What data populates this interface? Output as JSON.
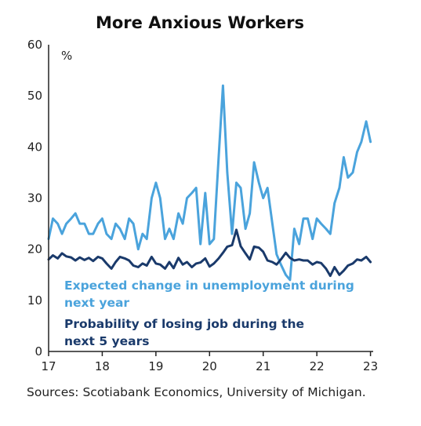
{
  "chart_data": {
    "type": "line",
    "title": "More Anxious Workers",
    "unit_label": "%",
    "ylim": [
      0,
      60
    ],
    "y_ticks": [
      0,
      10,
      20,
      30,
      40,
      50,
      60
    ],
    "xlim": [
      2017,
      2023.05
    ],
    "x_ticks": [
      {
        "value": 2017,
        "label": "17"
      },
      {
        "value": 2018,
        "label": "18"
      },
      {
        "value": 2019,
        "label": "19"
      },
      {
        "value": 2020,
        "label": "20"
      },
      {
        "value": 2021,
        "label": "21"
      },
      {
        "value": 2022,
        "label": "22"
      },
      {
        "value": 2023,
        "label": "23"
      }
    ],
    "grid": false,
    "legend_placement": "inside-bottom-left",
    "series": [
      {
        "name": "Expected change in unemployment during next year",
        "color": "#4aa3dc",
        "values": [
          [
            2017.0,
            22
          ],
          [
            2017.08,
            26
          ],
          [
            2017.17,
            25
          ],
          [
            2017.25,
            23
          ],
          [
            2017.33,
            25
          ],
          [
            2017.42,
            26
          ],
          [
            2017.5,
            27
          ],
          [
            2017.58,
            25
          ],
          [
            2017.67,
            25
          ],
          [
            2017.75,
            23
          ],
          [
            2017.83,
            23
          ],
          [
            2017.92,
            25
          ],
          [
            2018.0,
            26
          ],
          [
            2018.08,
            23
          ],
          [
            2018.17,
            22
          ],
          [
            2018.25,
            25
          ],
          [
            2018.33,
            24
          ],
          [
            2018.42,
            22
          ],
          [
            2018.5,
            26
          ],
          [
            2018.58,
            25
          ],
          [
            2018.67,
            20
          ],
          [
            2018.75,
            23
          ],
          [
            2018.83,
            22
          ],
          [
            2018.92,
            30
          ],
          [
            2019.0,
            33
          ],
          [
            2019.08,
            30
          ],
          [
            2019.17,
            22
          ],
          [
            2019.25,
            24
          ],
          [
            2019.33,
            22
          ],
          [
            2019.42,
            27
          ],
          [
            2019.5,
            25
          ],
          [
            2019.58,
            30
          ],
          [
            2019.67,
            31
          ],
          [
            2019.75,
            32
          ],
          [
            2019.83,
            21
          ],
          [
            2019.92,
            31
          ],
          [
            2020.0,
            21
          ],
          [
            2020.08,
            22
          ],
          [
            2020.17,
            38
          ],
          [
            2020.25,
            52
          ],
          [
            2020.33,
            35
          ],
          [
            2020.42,
            23
          ],
          [
            2020.5,
            33
          ],
          [
            2020.58,
            32
          ],
          [
            2020.67,
            24
          ],
          [
            2020.75,
            27
          ],
          [
            2020.83,
            37
          ],
          [
            2020.92,
            33
          ],
          [
            2021.0,
            30
          ],
          [
            2021.08,
            32
          ],
          [
            2021.17,
            25
          ],
          [
            2021.25,
            19
          ],
          [
            2021.33,
            17
          ],
          [
            2021.42,
            15
          ],
          [
            2021.5,
            14
          ],
          [
            2021.58,
            24
          ],
          [
            2021.67,
            21
          ],
          [
            2021.75,
            26
          ],
          [
            2021.83,
            26
          ],
          [
            2021.92,
            22
          ],
          [
            2022.0,
            26
          ],
          [
            2022.08,
            25
          ],
          [
            2022.17,
            24
          ],
          [
            2022.25,
            23
          ],
          [
            2022.33,
            29
          ],
          [
            2022.42,
            32
          ],
          [
            2022.5,
            38
          ],
          [
            2022.58,
            34
          ],
          [
            2022.67,
            35
          ],
          [
            2022.75,
            39
          ],
          [
            2022.83,
            41
          ],
          [
            2022.92,
            45
          ],
          [
            2023.0,
            41
          ]
        ]
      },
      {
        "name": "Probability of losing job during the next 5 years",
        "color": "#1a3a6b",
        "values": [
          [
            2017.0,
            18
          ],
          [
            2017.08,
            18.8
          ],
          [
            2017.17,
            18.2
          ],
          [
            2017.25,
            19.2
          ],
          [
            2017.33,
            18.6
          ],
          [
            2017.42,
            18.4
          ],
          [
            2017.5,
            17.8
          ],
          [
            2017.58,
            18.4
          ],
          [
            2017.67,
            17.9
          ],
          [
            2017.75,
            18.3
          ],
          [
            2017.83,
            17.7
          ],
          [
            2017.92,
            18.5
          ],
          [
            2018.0,
            18.2
          ],
          [
            2018.08,
            17.2
          ],
          [
            2018.17,
            16.2
          ],
          [
            2018.25,
            17.5
          ],
          [
            2018.33,
            18.5
          ],
          [
            2018.42,
            18.2
          ],
          [
            2018.5,
            17.8
          ],
          [
            2018.58,
            16.8
          ],
          [
            2018.67,
            16.5
          ],
          [
            2018.75,
            17.2
          ],
          [
            2018.83,
            16.8
          ],
          [
            2018.92,
            18.5
          ],
          [
            2019.0,
            17.2
          ],
          [
            2019.08,
            17.0
          ],
          [
            2019.17,
            16.2
          ],
          [
            2019.25,
            17.5
          ],
          [
            2019.33,
            16.3
          ],
          [
            2019.42,
            18.3
          ],
          [
            2019.5,
            17.0
          ],
          [
            2019.58,
            17.5
          ],
          [
            2019.67,
            16.5
          ],
          [
            2019.75,
            17.2
          ],
          [
            2019.83,
            17.4
          ],
          [
            2019.92,
            18.2
          ],
          [
            2020.0,
            16.6
          ],
          [
            2020.08,
            17.2
          ],
          [
            2020.17,
            18.2
          ],
          [
            2020.25,
            19.3
          ],
          [
            2020.33,
            20.5
          ],
          [
            2020.42,
            20.8
          ],
          [
            2020.5,
            23.8
          ],
          [
            2020.58,
            20.6
          ],
          [
            2020.67,
            19.2
          ],
          [
            2020.75,
            18.0
          ],
          [
            2020.83,
            20.5
          ],
          [
            2020.92,
            20.3
          ],
          [
            2021.0,
            19.5
          ],
          [
            2021.08,
            17.8
          ],
          [
            2021.17,
            17.5
          ],
          [
            2021.25,
            17.0
          ],
          [
            2021.33,
            18.0
          ],
          [
            2021.42,
            19.3
          ],
          [
            2021.5,
            18.3
          ],
          [
            2021.58,
            17.8
          ],
          [
            2021.67,
            18.0
          ],
          [
            2021.75,
            17.8
          ],
          [
            2021.83,
            17.8
          ],
          [
            2021.92,
            17.0
          ],
          [
            2022.0,
            17.5
          ],
          [
            2022.08,
            17.3
          ],
          [
            2022.17,
            16.2
          ],
          [
            2022.25,
            14.8
          ],
          [
            2022.33,
            16.5
          ],
          [
            2022.42,
            15.0
          ],
          [
            2022.5,
            15.8
          ],
          [
            2022.58,
            16.8
          ],
          [
            2022.67,
            17.2
          ],
          [
            2022.75,
            18.0
          ],
          [
            2022.83,
            17.8
          ],
          [
            2022.92,
            18.5
          ],
          [
            2023.0,
            17.5
          ]
        ]
      }
    ],
    "source": "Sources: Scotiabank Economics, University of Michigan."
  }
}
